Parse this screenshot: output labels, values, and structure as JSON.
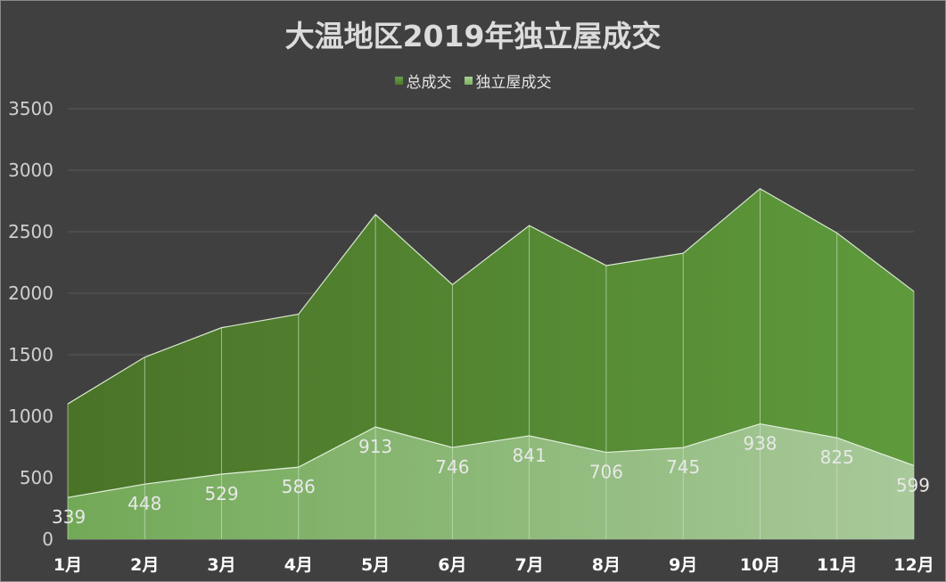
{
  "chart_data": {
    "type": "area",
    "title": "大温地区2019年独立屋成交",
    "categories": [
      "1月",
      "2月",
      "3月",
      "4月",
      "5月",
      "6月",
      "7月",
      "8月",
      "9月",
      "10月",
      "11月",
      "12月"
    ],
    "series": [
      {
        "name": "总成交",
        "values": [
          1100,
          1480,
          1720,
          1830,
          2640,
          2070,
          2550,
          2225,
          2325,
          2850,
          2490,
          2015
        ],
        "color": "#548235"
      },
      {
        "name": "独立屋成交",
        "values": [
          339,
          448,
          529,
          586,
          913,
          746,
          841,
          706,
          745,
          938,
          825,
          599
        ],
        "color": "#8fbf78",
        "data_labels": true
      }
    ],
    "ylim": [
      0,
      3500
    ],
    "yticks": [
      0,
      500,
      1000,
      1500,
      2000,
      2500,
      3000,
      3500
    ],
    "grid": true,
    "legend_position": "top"
  }
}
